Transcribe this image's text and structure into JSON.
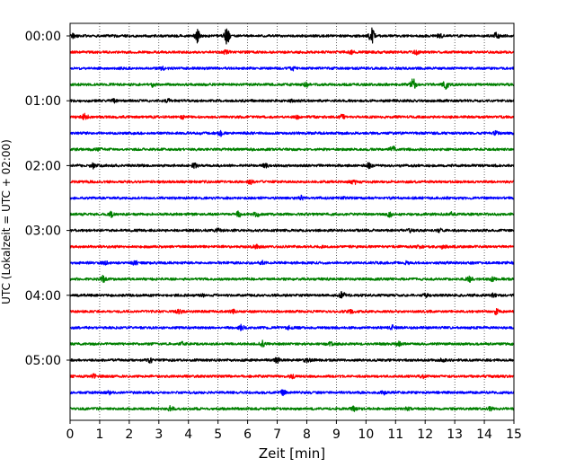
{
  "chart_data": {
    "type": "line",
    "title": "",
    "xlabel": "Zeit  [min]",
    "ylabel": "UTC (Lokalzeit = UTC + 02:00)",
    "xlim": [
      0,
      15
    ],
    "x_ticks": [
      "0",
      "1",
      "2",
      "3",
      "4",
      "5",
      "6",
      "7",
      "8",
      "9",
      "10",
      "11",
      "12",
      "13",
      "14",
      "15"
    ],
    "y_tick_labels": [
      "00:00",
      "01:00",
      "02:00",
      "03:00",
      "04:00",
      "05:00"
    ],
    "y_tick_traces": [
      0,
      4,
      8,
      12,
      16,
      20
    ],
    "trace_minutes": 15,
    "grid": {
      "x": "dotted",
      "y": false
    },
    "trace_colors": [
      "#000000",
      "#ff0000",
      "#0000ff",
      "#008000"
    ],
    "series": [
      {
        "start": "00:00",
        "color": "#000000",
        "events": [
          [
            4.3,
            7
          ],
          [
            5.3,
            8
          ],
          [
            10.2,
            9
          ],
          [
            14.4,
            3
          ],
          [
            12.5,
            2
          ],
          [
            0.1,
            2
          ]
        ]
      },
      {
        "start": "00:15",
        "color": "#ff0000",
        "events": [
          [
            5.3,
            3
          ],
          [
            11.7,
            2
          ],
          [
            9.5,
            1.5
          ]
        ]
      },
      {
        "start": "00:30",
        "color": "#0000ff",
        "events": [
          [
            7.5,
            2
          ],
          [
            3.1,
            1.5
          ]
        ]
      },
      {
        "start": "00:45",
        "color": "#008000",
        "events": [
          [
            11.6,
            6
          ],
          [
            12.7,
            5
          ],
          [
            2.8,
            2
          ],
          [
            8.0,
            2
          ]
        ]
      },
      {
        "start": "01:00",
        "color": "#000000",
        "events": [
          [
            1.5,
            1.5
          ],
          [
            3.3,
            1.5
          ],
          [
            7.5,
            1.5
          ]
        ]
      },
      {
        "start": "01:15",
        "color": "#ff0000",
        "events": [
          [
            0.5,
            3
          ],
          [
            7.7,
            2
          ],
          [
            9.2,
            2
          ],
          [
            3.8,
            1.5
          ]
        ]
      },
      {
        "start": "01:30",
        "color": "#0000ff",
        "events": [
          [
            5.1,
            2.5
          ],
          [
            14.4,
            1.5
          ]
        ]
      },
      {
        "start": "01:45",
        "color": "#008000",
        "events": [
          [
            10.9,
            3
          ],
          [
            1.0,
            1.5
          ]
        ]
      },
      {
        "start": "02:00",
        "color": "#000000",
        "events": [
          [
            0.8,
            2.5
          ],
          [
            4.2,
            2
          ],
          [
            10.1,
            2.5
          ],
          [
            6.6,
            1.5
          ]
        ]
      },
      {
        "start": "02:15",
        "color": "#ff0000",
        "events": [
          [
            6.1,
            2
          ],
          [
            9.6,
            2.5
          ]
        ]
      },
      {
        "start": "02:30",
        "color": "#0000ff",
        "events": [
          [
            7.8,
            2
          ],
          [
            9.2,
            1.5
          ]
        ]
      },
      {
        "start": "02:45",
        "color": "#008000",
        "events": [
          [
            1.4,
            2.5
          ],
          [
            5.7,
            2.5
          ],
          [
            6.3,
            3
          ],
          [
            10.8,
            2.5
          ],
          [
            12.9,
            1.5
          ]
        ]
      },
      {
        "start": "03:00",
        "color": "#000000",
        "events": [
          [
            5.0,
            1.5
          ],
          [
            12.5,
            2
          ],
          [
            11.5,
            1.5
          ]
        ]
      },
      {
        "start": "03:15",
        "color": "#ff0000",
        "events": [
          [
            6.3,
            2.5
          ],
          [
            11.8,
            2
          ],
          [
            12.6,
            2
          ],
          [
            8.4,
            1.5
          ]
        ]
      },
      {
        "start": "03:30",
        "color": "#0000ff",
        "events": [
          [
            1.2,
            2
          ],
          [
            2.2,
            1.5
          ],
          [
            6.5,
            1.5
          ],
          [
            11.4,
            1.5
          ]
        ]
      },
      {
        "start": "03:45",
        "color": "#008000",
        "events": [
          [
            1.1,
            3
          ],
          [
            13.5,
            2.5
          ],
          [
            14.3,
            2
          ]
        ]
      },
      {
        "start": "04:00",
        "color": "#000000",
        "events": [
          [
            4.5,
            1.5
          ],
          [
            9.2,
            3
          ],
          [
            12.0,
            1.5
          ],
          [
            14.3,
            1.5
          ]
        ]
      },
      {
        "start": "04:15",
        "color": "#ff0000",
        "events": [
          [
            3.7,
            2
          ],
          [
            9.5,
            1.5
          ],
          [
            14.4,
            2.5
          ],
          [
            5.5,
            1.5
          ]
        ]
      },
      {
        "start": "04:30",
        "color": "#0000ff",
        "events": [
          [
            5.8,
            3
          ],
          [
            7.4,
            1.5
          ],
          [
            10.9,
            2
          ]
        ]
      },
      {
        "start": "04:45",
        "color": "#008000",
        "events": [
          [
            3.8,
            2
          ],
          [
            6.5,
            3
          ],
          [
            11.1,
            2
          ],
          [
            8.8,
            1.5
          ]
        ]
      },
      {
        "start": "05:00",
        "color": "#000000",
        "events": [
          [
            2.7,
            2
          ],
          [
            7.0,
            2.5
          ],
          [
            8.0,
            2.5
          ],
          [
            12.6,
            1.5
          ]
        ]
      },
      {
        "start": "05:15",
        "color": "#ff0000",
        "events": [
          [
            0.8,
            2
          ],
          [
            7.5,
            1.5
          ],
          [
            11.9,
            1.5
          ]
        ]
      },
      {
        "start": "05:30",
        "color": "#0000ff",
        "events": [
          [
            1.3,
            1.5
          ],
          [
            7.2,
            2
          ],
          [
            10.6,
            2
          ]
        ]
      },
      {
        "start": "05:45",
        "color": "#008000",
        "events": [
          [
            3.4,
            2.5
          ],
          [
            9.6,
            2
          ],
          [
            11.4,
            1.5
          ],
          [
            14.2,
            1.5
          ]
        ]
      }
    ]
  }
}
